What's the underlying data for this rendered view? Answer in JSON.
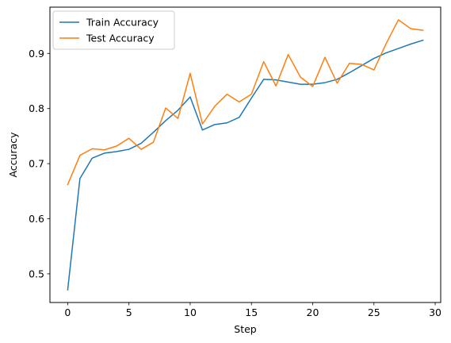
{
  "chart_data": {
    "type": "line",
    "title": "",
    "xlabel": "Step",
    "ylabel": "Accuracy",
    "xlim": [
      -1.45,
      30.45
    ],
    "ylim": [
      0.448,
      0.984
    ],
    "xticks": [
      0,
      5,
      10,
      15,
      20,
      25,
      30
    ],
    "yticks": [
      0.5,
      0.6,
      0.7,
      0.8,
      0.9
    ],
    "xtick_labels": [
      "0",
      "5",
      "10",
      "15",
      "20",
      "25",
      "30"
    ],
    "ytick_labels": [
      "0.5",
      "0.6",
      "0.7",
      "0.8",
      "0.9"
    ],
    "grid": false,
    "legend_position": "top-left",
    "x": [
      0,
      1,
      2,
      3,
      4,
      5,
      6,
      7,
      8,
      9,
      10,
      11,
      12,
      13,
      14,
      15,
      16,
      17,
      18,
      19,
      20,
      21,
      22,
      23,
      24,
      25,
      26,
      27,
      28,
      29
    ],
    "series": [
      {
        "name": "Train Accuracy",
        "color": "#1f77b4",
        "values": [
          0.471,
          0.673,
          0.71,
          0.719,
          0.722,
          0.726,
          0.737,
          0.757,
          0.778,
          0.797,
          0.821,
          0.761,
          0.771,
          0.774,
          0.784,
          0.819,
          0.853,
          0.852,
          0.848,
          0.844,
          0.844,
          0.847,
          0.853,
          0.865,
          0.878,
          0.891,
          0.901,
          0.909,
          0.917,
          0.924
        ]
      },
      {
        "name": "Test Accuracy",
        "color": "#ff7f0e",
        "values": [
          0.662,
          0.715,
          0.727,
          0.725,
          0.732,
          0.746,
          0.726,
          0.739,
          0.801,
          0.782,
          0.864,
          0.772,
          0.804,
          0.826,
          0.812,
          0.826,
          0.885,
          0.841,
          0.898,
          0.857,
          0.84,
          0.893,
          0.846,
          0.882,
          0.88,
          0.87,
          0.918,
          0.961,
          0.945,
          0.942
        ]
      }
    ]
  }
}
